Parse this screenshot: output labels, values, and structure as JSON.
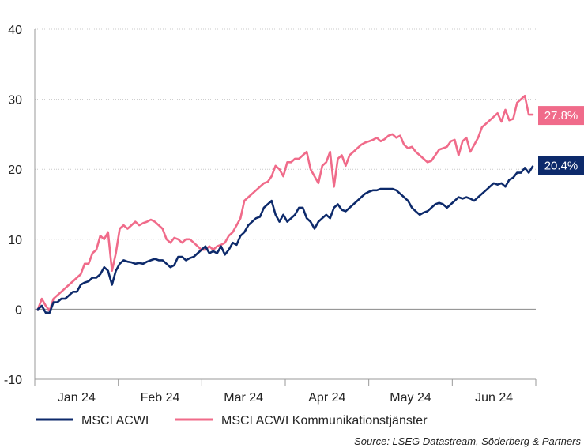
{
  "chart_data": {
    "type": "line",
    "title": "",
    "xlabel": "",
    "ylabel": "",
    "ylim": [
      -10,
      40
    ],
    "yticks": [
      -10,
      0,
      10,
      20,
      30,
      40
    ],
    "x_tick_labels": [
      "Jan 24",
      "Feb 24",
      "Mar 24",
      "Apr 24",
      "May 24",
      "Jun 24"
    ],
    "grid": "horizontal dotted",
    "legend_position": "bottom",
    "series": [
      {
        "name": "MSCI ACWI",
        "color": "#0d2a6b",
        "end_label": "20.4%",
        "values": [
          0,
          0.5,
          -0.5,
          -0.5,
          1,
          1,
          1.5,
          1.5,
          2,
          2.5,
          2.5,
          3.5,
          3.8,
          4,
          4.5,
          4.5,
          5,
          6,
          5.5,
          3.5,
          5.5,
          6.5,
          7,
          6.8,
          6.7,
          6.5,
          6.6,
          6.5,
          6.8,
          7,
          7.2,
          7,
          7,
          6.5,
          6,
          6.3,
          7.5,
          7.5,
          7,
          7.3,
          7.5,
          8,
          8.5,
          9,
          8,
          8.3,
          8,
          9,
          7.8,
          8.5,
          9.5,
          9.2,
          10.5,
          11,
          12,
          12.5,
          13,
          13.2,
          14.5,
          15,
          15.5,
          13.5,
          12.5,
          13.5,
          12.5,
          13,
          13.5,
          14.5,
          14.5,
          13,
          12.5,
          11.5,
          12.5,
          13,
          13.5,
          13,
          14.5,
          15,
          14.2,
          14,
          14.5,
          15,
          15.5,
          16,
          16.5,
          16.8,
          17,
          17,
          17.2,
          17.2,
          17.2,
          17.2,
          17,
          16.5,
          16,
          15.5,
          14.5,
          14,
          13.5,
          13.8,
          14,
          14.5,
          15,
          15.2,
          15,
          14.5,
          15,
          15.5,
          16,
          15.8,
          16,
          15.8,
          15.5,
          16,
          16.5,
          17,
          17.5,
          18,
          17.8,
          18,
          17.5,
          18.5,
          18.8,
          19.5,
          19.5,
          20.2,
          19.5,
          20.4
        ]
      },
      {
        "name": "MSCI ACWI Kommunikationstjänster",
        "color": "#f06b8a",
        "end_label": "27.8%",
        "values": [
          0,
          1.5,
          0.5,
          -0.2,
          1.5,
          2,
          2.5,
          3,
          3.5,
          4,
          4.5,
          5,
          6.5,
          6.5,
          8,
          8.5,
          10.5,
          10,
          11,
          5.5,
          8,
          11.5,
          12,
          11.5,
          12,
          12.5,
          12,
          12.3,
          12.5,
          12.8,
          12.5,
          12,
          11.5,
          10,
          9.5,
          10.2,
          10,
          9.5,
          10,
          10,
          9.5,
          9,
          8.5,
          8.5,
          9,
          8.5,
          9,
          9.2,
          9.5,
          10.5,
          11,
          12,
          13,
          15.5,
          16,
          16.5,
          17,
          17.5,
          18,
          18.2,
          19,
          20.5,
          20,
          19,
          21,
          21,
          21.5,
          21.5,
          22,
          22.5,
          20,
          19,
          18,
          20.5,
          21,
          22.5,
          17.5,
          21.5,
          22,
          20.5,
          22,
          22.5,
          23,
          23.5,
          23.8,
          24,
          24.2,
          24.5,
          24,
          24.3,
          24.8,
          25,
          24.5,
          24.8,
          23.5,
          23,
          23.2,
          22.5,
          22,
          21.5,
          21,
          21.2,
          22,
          22.8,
          23,
          23.2,
          24,
          24.2,
          22,
          24,
          24.5,
          22.5,
          23.5,
          24.5,
          26,
          26.5,
          27,
          27.5,
          28,
          26.8,
          28.5,
          27,
          27.2,
          29.5,
          30,
          30.5,
          27.8,
          27.8
        ]
      }
    ]
  },
  "source_text": "Source: LSEG Datastream, Söderberg & Partners"
}
